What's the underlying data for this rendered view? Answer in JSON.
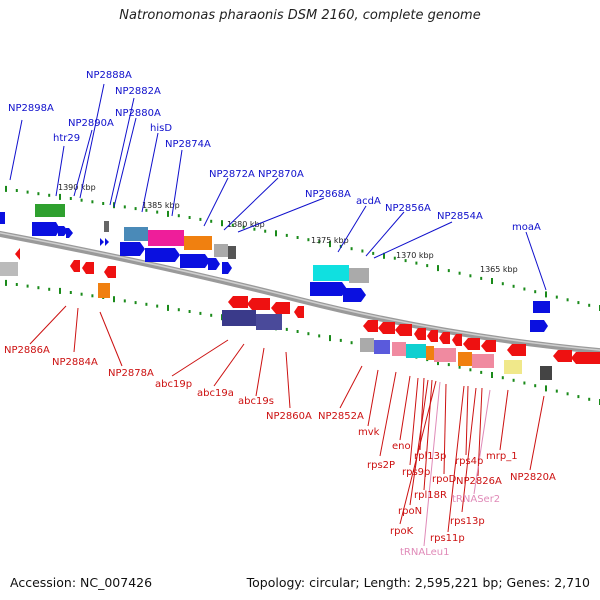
{
  "title": "Natronomonas pharaonis DSM 2160, complete genome",
  "footer": {
    "accession": "Accession: NC_007426",
    "summary": "Topology: circular; Length: 2,595,221 bp; Genes: 2,710"
  },
  "colors": {
    "forward_strand": "#0a10e0",
    "reverse_strand": "#ee1111",
    "backbone": "#888888",
    "tick": "#1a8a1a",
    "top_label": "#1010cc",
    "bottom_label": "#cc1111",
    "rna_label": "#e08ab8"
  },
  "kbp_ticks": [
    "1390 kbp",
    "1385 kbp",
    "1380 kbp",
    "1375 kbp",
    "1370 kbp",
    "1365 kbp"
  ],
  "top_labels": [
    "NP2898A",
    "htr29",
    "NP2890A",
    "NP2888A",
    "NP2882A",
    "NP2880A",
    "hisD",
    "NP2874A",
    "NP2872A",
    "NP2870A",
    "NP2868A",
    "acdA",
    "NP2856A",
    "NP2854A",
    "moaA"
  ],
  "bottom_labels": [
    "NP2886A",
    "NP2884A",
    "NP2878A",
    "abc19p",
    "abc19a",
    "abc19s",
    "NP2860A",
    "NP2852A",
    "mvk",
    "rps2P",
    "eno",
    "rps9p",
    "rpl13p",
    "rpoN",
    "rpl18R",
    "rpoK",
    "rpoD",
    "rps4p",
    "mrp_1",
    "NP2826A",
    "tRNASer2",
    "rps13p",
    "rps11p",
    "tRNALeu1",
    "NP2820A"
  ]
}
